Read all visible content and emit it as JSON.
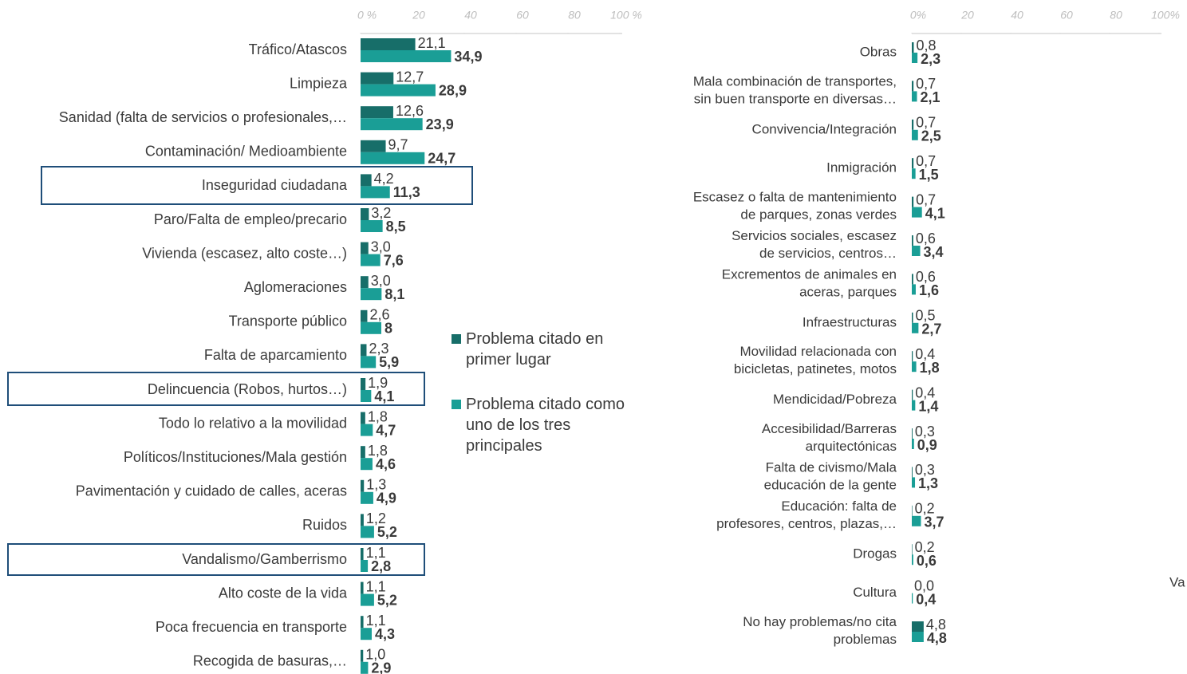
{
  "chart_data": [
    {
      "type": "hbar",
      "categories": [
        "Tráfico/Atascos",
        "Limpieza",
        "Sanidad (falta de servicios o profesionales,…",
        "Contaminación/ Medioambiente",
        "Inseguridad ciudadana",
        "Paro/Falta de empleo/precario",
        "Vivienda (escasez, alto coste…)",
        "Aglomeraciones",
        "Transporte público",
        "Falta de aparcamiento",
        "Delincuencia (Robos, hurtos…)",
        "Todo lo relativo a la movilidad",
        "Políticos/Instituciones/Mala gestión",
        "Pavimentación y cuidado de calles, aceras",
        "Ruidos",
        "Vandalismo/Gamberrismo",
        "Alto coste de la vida",
        "Poca frecuencia en transporte",
        "Recogida de basuras,…"
      ],
      "series": [
        {
          "name": "Problema citado en primer lugar",
          "color": "#176e69",
          "values": [
            21.1,
            12.7,
            12.6,
            9.7,
            4.2,
            3.2,
            3.0,
            3.0,
            2.6,
            2.3,
            1.9,
            1.8,
            1.8,
            1.3,
            1.2,
            1.1,
            1.1,
            1.1,
            1.0
          ],
          "value_labels": [
            "21,1",
            "12,7",
            "12,6",
            "9,7",
            "4,2",
            "3,2",
            "3,0",
            "3,0",
            "2,6",
            "2,3",
            "1,9",
            "1,8",
            "1,8",
            "1,3",
            "1,2",
            "1,1",
            "1,1",
            "1,1",
            "1,0"
          ]
        },
        {
          "name": "Problema citado como uno de los tres principales",
          "color": "#1a9e96",
          "values": [
            34.9,
            28.9,
            23.9,
            24.7,
            11.3,
            8.5,
            7.6,
            8.1,
            8,
            5.9,
            4.1,
            4.7,
            4.6,
            4.9,
            5.2,
            2.8,
            5.2,
            4.3,
            2.9
          ],
          "value_labels": [
            "34,9",
            "28,9",
            "23,9",
            "24,7",
            "11,3",
            "8,5",
            "7,6",
            "8,1",
            "8",
            "5,9",
            "4,1",
            "4,7",
            "4,6",
            "4,9",
            "5,2",
            "2,8",
            "5,2",
            "4,3",
            "2,9"
          ]
        }
      ],
      "xlim": [
        0,
        100
      ],
      "xticks": [
        {
          "value": 0,
          "label": "0 %"
        },
        20,
        40,
        60,
        80,
        {
          "value": 100,
          "label": "100 %"
        }
      ],
      "highlight": [
        4,
        10,
        15
      ]
    },
    {
      "type": "hbar",
      "categories": [
        "Obras",
        "Mala combinación de transportes,\nsin buen transporte en diversas…",
        "Convivencia/Integración",
        "Inmigración",
        "Escasez o falta de mantenimiento\nde parques, zonas verdes",
        "Servicios sociales, escasez\nde servicios, centros…",
        "Excrementos de animales en\naceras, parques",
        "Infraestructuras",
        "Movilidad relacionada con\nbicicletas, patinetes, motos",
        "Mendicidad/Pobreza",
        "Accesibilidad/Barreras\narquitectónicas",
        "Falta de civismo/Mala\neducación de la gente",
        "Educación: falta de\nprofesores, centros, plazas,…",
        "Drogas",
        "Cultura",
        "No hay problemas/no cita\nproblemas"
      ],
      "series": [
        {
          "color": "#176e69",
          "values": [
            0.8,
            0.7,
            0.7,
            0.7,
            0.7,
            0.6,
            0.6,
            0.5,
            0.4,
            0.4,
            0.3,
            0.3,
            0.2,
            0.2,
            0.0,
            4.8
          ],
          "value_labels": [
            "0,8",
            "0,7",
            "0,7",
            "0,7",
            "0,7",
            "0,6",
            "0,6",
            "0,5",
            "0,4",
            "0,4",
            "0,3",
            "0,3",
            "0,2",
            "0,2",
            "0,0",
            "4,8"
          ]
        },
        {
          "color": "#1a9e96",
          "values": [
            2.3,
            2.1,
            2.5,
            1.5,
            4.1,
            3.4,
            1.6,
            2.7,
            1.8,
            1.4,
            0.9,
            1.3,
            3.7,
            0.6,
            0.4,
            4.8
          ],
          "value_labels": [
            "2,3",
            "2,1",
            "2,5",
            "1,5",
            "4,1",
            "3,4",
            "1,6",
            "2,7",
            "1,8",
            "1,4",
            "0,9",
            "1,3",
            "3,7",
            "0,6",
            "0,4",
            "4,8"
          ]
        }
      ],
      "xlim": [
        0,
        100
      ],
      "xticks": [
        {
          "value": 0,
          "label": "0%"
        },
        20,
        40,
        60,
        80,
        {
          "value": 100,
          "label": "100%"
        }
      ],
      "annotations": [
        "Va"
      ]
    }
  ]
}
